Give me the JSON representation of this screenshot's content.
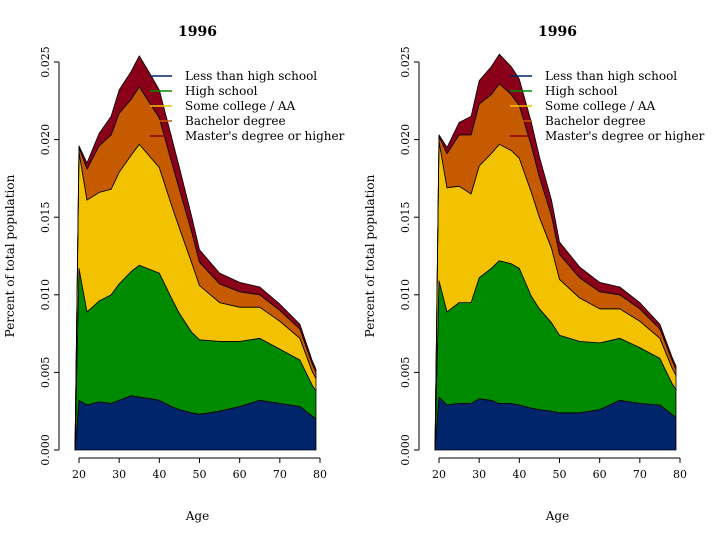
{
  "chart_data": [
    {
      "type": "area",
      "stacked": true,
      "title": "1996",
      "xlabel": "Age",
      "ylabel": "Percent of total population",
      "xlim": [
        19,
        80
      ],
      "ylim": [
        0,
        0.025
      ],
      "xticks": [
        "20",
        "30",
        "40",
        "50",
        "60",
        "70",
        "80"
      ],
      "yticks": [
        "0.000",
        "0.005",
        "0.010",
        "0.015",
        "0.020",
        "0.025"
      ],
      "legend_position": "top-right",
      "x": [
        19,
        20,
        22,
        25,
        28,
        30,
        33,
        35,
        38,
        40,
        43,
        45,
        48,
        50,
        55,
        60,
        65,
        70,
        75,
        78,
        79
      ],
      "series": [
        {
          "name": "Less than high school",
          "color": "#00256b",
          "values": [
            0.0,
            0.0032,
            0.0029,
            0.0031,
            0.003,
            0.0032,
            0.0035,
            0.0034,
            0.0033,
            0.0032,
            0.0028,
            0.0026,
            0.0024,
            0.0023,
            0.0025,
            0.0028,
            0.0032,
            0.003,
            0.0028,
            0.0022,
            0.002
          ]
        },
        {
          "name": "High school",
          "color": "#008a00",
          "values": [
            0.0,
            0.0085,
            0.006,
            0.0065,
            0.007,
            0.0075,
            0.008,
            0.0085,
            0.0083,
            0.0082,
            0.007,
            0.0062,
            0.0052,
            0.0048,
            0.0045,
            0.0042,
            0.004,
            0.0035,
            0.003,
            0.002,
            0.0018
          ]
        },
        {
          "name": "Some college / AA",
          "color": "#f2c200",
          "values": [
            0.0,
            0.0075,
            0.0072,
            0.007,
            0.0068,
            0.0072,
            0.0075,
            0.0078,
            0.0072,
            0.0068,
            0.006,
            0.0055,
            0.0045,
            0.0035,
            0.0025,
            0.0022,
            0.002,
            0.0018,
            0.0014,
            0.0009,
            0.0008
          ]
        },
        {
          "name": "Bachelor degree",
          "color": "#c65a00",
          "values": [
            0.0,
            0.0003,
            0.002,
            0.003,
            0.0035,
            0.0038,
            0.0036,
            0.0037,
            0.0034,
            0.0032,
            0.0028,
            0.0025,
            0.002,
            0.0015,
            0.0012,
            0.001,
            0.0008,
            0.0007,
            0.0006,
            0.0005,
            0.0004
          ]
        },
        {
          "name": "Master's degree or higher",
          "color": "#8b0019",
          "values": [
            0.0,
            0.0001,
            0.0004,
            0.0008,
            0.0012,
            0.0015,
            0.0018,
            0.002,
            0.0019,
            0.0018,
            0.0016,
            0.0014,
            0.001,
            0.0008,
            0.0007,
            0.0006,
            0.0005,
            0.0004,
            0.0003,
            0.0002,
            0.0002
          ]
        }
      ]
    },
    {
      "type": "area",
      "stacked": true,
      "title": "1996",
      "xlabel": "Age",
      "ylabel": "Percent of total population",
      "xlim": [
        19,
        80
      ],
      "ylim": [
        0,
        0.025
      ],
      "xticks": [
        "20",
        "30",
        "40",
        "50",
        "60",
        "70",
        "80"
      ],
      "yticks": [
        "0.000",
        "0.005",
        "0.010",
        "0.015",
        "0.020",
        "0.025"
      ],
      "legend_position": "top-right",
      "x": [
        19,
        20,
        22,
        25,
        28,
        30,
        33,
        35,
        38,
        40,
        43,
        45,
        48,
        50,
        55,
        60,
        65,
        70,
        75,
        78,
        79
      ],
      "series": [
        {
          "name": "Less than high school",
          "color": "#00256b",
          "values": [
            0.0,
            0.0034,
            0.0029,
            0.003,
            0.003,
            0.0033,
            0.0032,
            0.003,
            0.003,
            0.0029,
            0.0027,
            0.0026,
            0.0025,
            0.0024,
            0.0024,
            0.0026,
            0.0032,
            0.003,
            0.0029,
            0.0023,
            0.0021
          ]
        },
        {
          "name": "High school",
          "color": "#008a00",
          "values": [
            0.0,
            0.0075,
            0.006,
            0.0065,
            0.0065,
            0.0078,
            0.0085,
            0.0092,
            0.009,
            0.0088,
            0.0072,
            0.0065,
            0.0057,
            0.005,
            0.0046,
            0.0043,
            0.004,
            0.0036,
            0.003,
            0.002,
            0.0018
          ]
        },
        {
          "name": "Some college / AA",
          "color": "#f2c200",
          "values": [
            0.0,
            0.009,
            0.008,
            0.0075,
            0.007,
            0.0072,
            0.0074,
            0.0075,
            0.0073,
            0.0071,
            0.0067,
            0.0059,
            0.0048,
            0.0036,
            0.0028,
            0.0022,
            0.0019,
            0.0017,
            0.0013,
            0.001,
            0.0009
          ]
        },
        {
          "name": "Bachelor degree",
          "color": "#c65a00",
          "values": [
            0.0,
            0.0003,
            0.0022,
            0.0033,
            0.0038,
            0.004,
            0.0038,
            0.0039,
            0.0036,
            0.0034,
            0.003,
            0.0026,
            0.0021,
            0.0016,
            0.0013,
            0.0011,
            0.0009,
            0.0008,
            0.0006,
            0.0005,
            0.0004
          ]
        },
        {
          "name": "Master's degree or higher",
          "color": "#8b0019",
          "values": [
            0.0,
            0.0001,
            0.0004,
            0.0008,
            0.0012,
            0.0015,
            0.0018,
            0.0019,
            0.0018,
            0.0017,
            0.0015,
            0.0013,
            0.001,
            0.0008,
            0.0007,
            0.0006,
            0.0005,
            0.0004,
            0.0003,
            0.0002,
            0.0002
          ]
        }
      ]
    }
  ]
}
